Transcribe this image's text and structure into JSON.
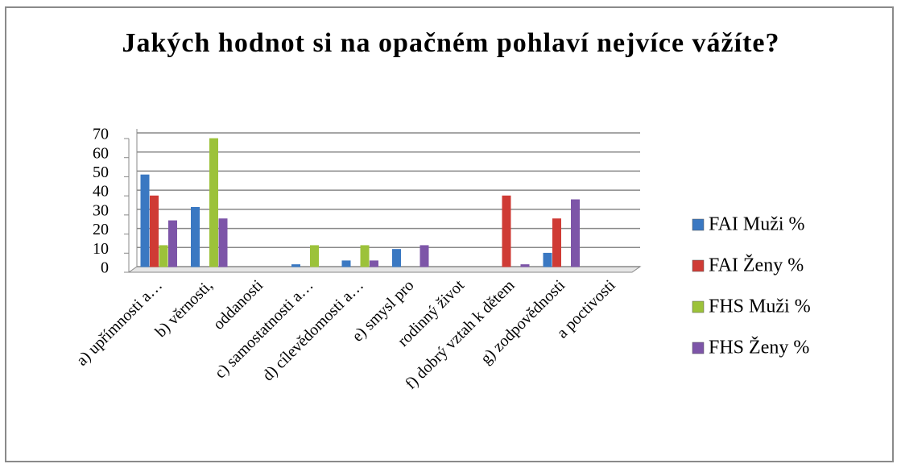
{
  "chart_data": {
    "type": "bar",
    "title": "Jakých hodnot si na opačném pohlaví nejvíce vážíte?",
    "categories": [
      "a) upřímnosti a…",
      "b) věrnosti,",
      "oddanosti",
      "c) samostatnosti a…",
      "d) cílevědomosti a…",
      "e) smysl pro",
      "rodinný život",
      "f) dobrý vztah k dětem",
      "g) zodpovědnosti",
      "a poctivosti"
    ],
    "series": [
      {
        "name": "FAI Muži %",
        "color": "#3a78c2",
        "values": [
          48,
          31,
          null,
          1,
          3,
          9,
          null,
          0,
          7,
          null
        ]
      },
      {
        "name": "FAI Ženy %",
        "color": "#cf3b35",
        "values": [
          37,
          0,
          null,
          0,
          0,
          0,
          null,
          37,
          25,
          null
        ]
      },
      {
        "name": "FHS Muži %",
        "color": "#9cc23a",
        "values": [
          11,
          67,
          null,
          11,
          11,
          0,
          null,
          0,
          0,
          null
        ]
      },
      {
        "name": "FHS Ženy %",
        "color": "#7d55a8",
        "values": [
          24,
          25,
          null,
          0,
          3,
          11,
          null,
          1,
          35,
          null
        ]
      }
    ],
    "ylim": [
      0,
      70
    ],
    "yticks": [
      0,
      10,
      20,
      30,
      40,
      50,
      60,
      70
    ],
    "grid": true,
    "legend": "right"
  }
}
